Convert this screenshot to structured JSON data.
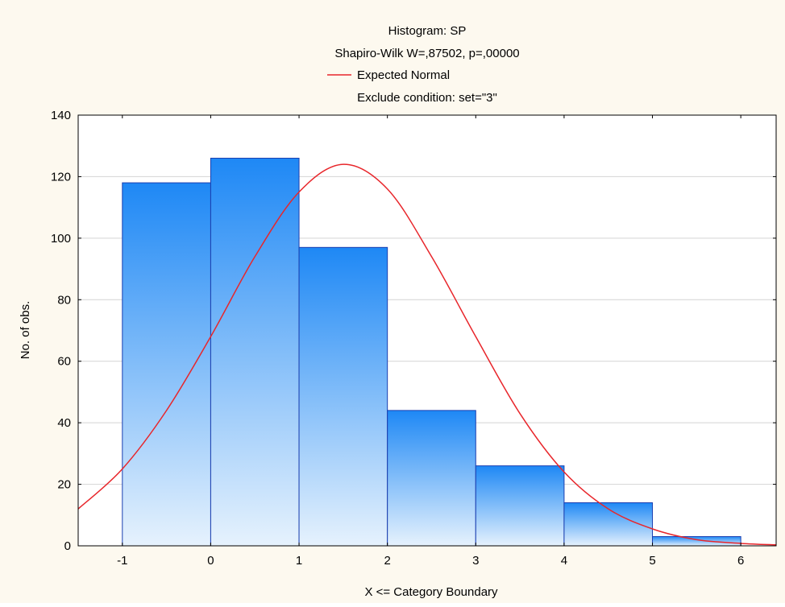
{
  "chart_data": {
    "type": "bar",
    "title": "Histogram: SP",
    "subtitle": "Shapiro-Wilk W=,87502, p=,00000",
    "legend": {
      "entries": [
        {
          "name": "Expected Normal",
          "color": "#e8262b"
        }
      ],
      "placement": "top-center"
    },
    "note": "Exclude condition: set=\"3\"",
    "xlabel": "X <= Category Boundary",
    "ylabel": "No. of obs.",
    "xlim": [
      -1.5,
      6.4
    ],
    "ylim": [
      0,
      140
    ],
    "xticks": [
      "-1",
      "0",
      "1",
      "2",
      "3",
      "4",
      "5",
      "6"
    ],
    "yticks": [
      "0",
      "20",
      "40",
      "60",
      "80",
      "100",
      "120",
      "140"
    ],
    "grid": true,
    "bins": [
      {
        "from": -1,
        "to": 0,
        "value": 118
      },
      {
        "from": 0,
        "to": 1,
        "value": 126
      },
      {
        "from": 1,
        "to": 2,
        "value": 97
      },
      {
        "from": 2,
        "to": 3,
        "value": 44
      },
      {
        "from": 3,
        "to": 4,
        "value": 26
      },
      {
        "from": 4,
        "to": 5,
        "value": 14
      },
      {
        "from": 5,
        "to": 6,
        "value": 3
      },
      {
        "from": 6,
        "to": 7,
        "value": 0
      }
    ],
    "expected_normal": {
      "name": "Expected Normal",
      "x": [
        -1.5,
        -1,
        -0.5,
        0,
        0.5,
        1,
        1.5,
        2,
        2.5,
        3,
        3.5,
        4,
        4.5,
        5,
        5.5,
        6,
        6.4
      ],
      "y": [
        12,
        25,
        44,
        68,
        94,
        115,
        124,
        116,
        94,
        68,
        43,
        24,
        12,
        5.5,
        2,
        0.8,
        0.3
      ]
    },
    "colors": {
      "bar_top": "#1e88f5",
      "bar_bottom": "#e6f2fd",
      "bar_edge": "#1a3fb0",
      "curve": "#e8262b",
      "grid": "#d4d4d4",
      "plot_bg": "#ffffff",
      "frame_bg": "#fdf9ef"
    }
  }
}
